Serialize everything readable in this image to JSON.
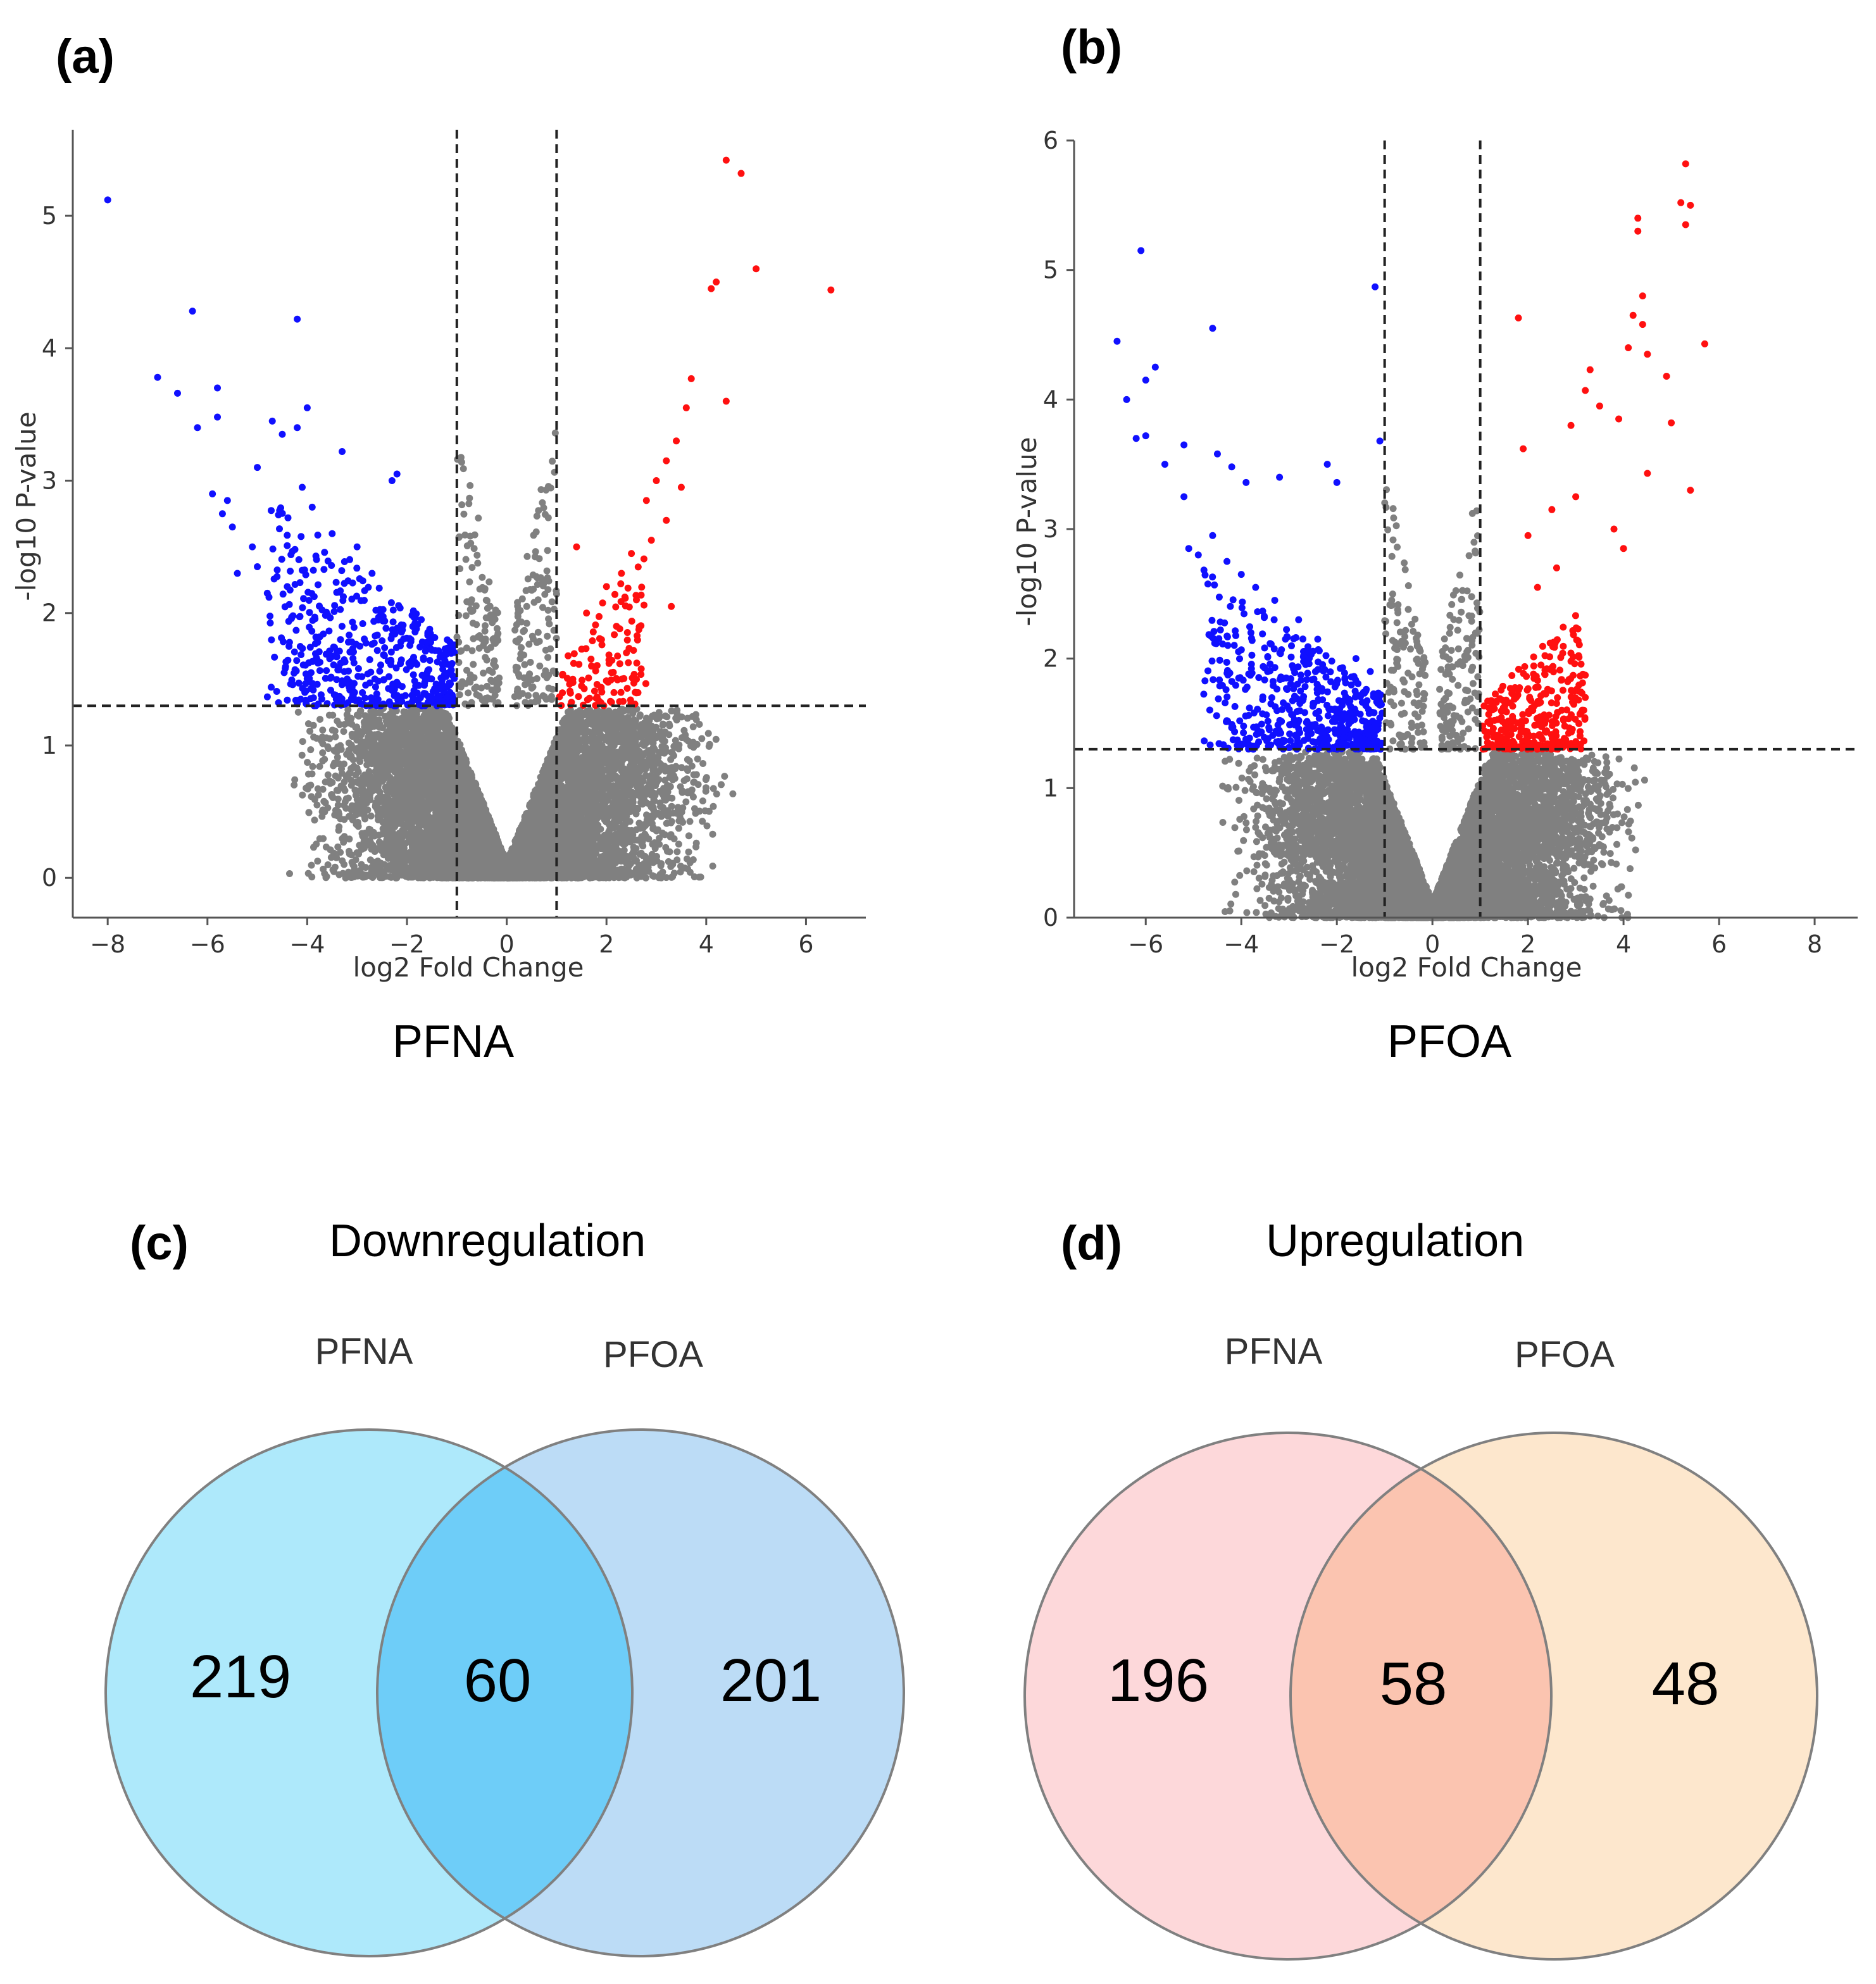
{
  "chart_data": [
    {
      "id": "a",
      "type": "scatter",
      "panel_label": "(a)",
      "title": "PFNA",
      "xlabel": "log2 Fold Change",
      "ylabel": "-log10 P-value",
      "xlim": [
        -8.7,
        7.2
      ],
      "ylim": [
        -0.3,
        5.65
      ],
      "xticks": [
        -8,
        -6,
        -4,
        -2,
        0,
        2,
        4,
        6
      ],
      "yticks": [
        0,
        1,
        2,
        3,
        4,
        5
      ],
      "fc_threshold": [
        -1,
        1
      ],
      "p_threshold": 1.3,
      "colors": {
        "down": "#1010ff",
        "up": "#ff1010",
        "ns": "#808080"
      },
      "points_down": [
        [
          -8.0,
          5.12
        ],
        [
          -6.3,
          4.28
        ],
        [
          -7.0,
          3.78
        ],
        [
          -6.6,
          3.66
        ],
        [
          -5.8,
          3.7
        ],
        [
          -6.2,
          3.4
        ],
        [
          -5.8,
          3.48
        ],
        [
          -5.0,
          3.1
        ],
        [
          -4.7,
          3.45
        ],
        [
          -4.5,
          3.35
        ],
        [
          -4.2,
          4.22
        ],
        [
          -4.0,
          3.55
        ],
        [
          -4.2,
          3.4
        ],
        [
          -3.3,
          3.22
        ],
        [
          -2.2,
          3.05
        ],
        [
          -2.3,
          3.0
        ],
        [
          -5.9,
          2.9
        ],
        [
          -5.6,
          2.85
        ],
        [
          -5.7,
          2.75
        ],
        [
          -5.5,
          2.65
        ],
        [
          -5.1,
          2.5
        ],
        [
          -5.4,
          2.3
        ],
        [
          -5.0,
          2.35
        ],
        [
          -4.8,
          2.15
        ],
        [
          -4.4,
          2.2
        ],
        [
          -4.1,
          2.95
        ],
        [
          -3.9,
          2.8
        ],
        [
          -3.5,
          2.6
        ],
        [
          -3.0,
          2.5
        ],
        [
          -2.7,
          2.3
        ]
      ],
      "points_up": [
        [
          4.4,
          5.42
        ],
        [
          4.7,
          5.32
        ],
        [
          5.0,
          4.6
        ],
        [
          6.5,
          4.44
        ],
        [
          4.2,
          4.5
        ],
        [
          4.1,
          4.45
        ],
        [
          4.4,
          3.6
        ],
        [
          3.7,
          3.77
        ],
        [
          3.6,
          3.55
        ],
        [
          3.4,
          3.3
        ],
        [
          3.2,
          3.15
        ],
        [
          3.0,
          3.0
        ],
        [
          3.5,
          2.95
        ],
        [
          2.8,
          2.85
        ],
        [
          3.2,
          2.7
        ],
        [
          2.9,
          2.55
        ],
        [
          1.4,
          2.5
        ],
        [
          2.5,
          2.45
        ],
        [
          2.3,
          2.3
        ],
        [
          2.0,
          2.2
        ],
        [
          2.6,
          2.1
        ],
        [
          3.3,
          2.05
        ],
        [
          1.6,
          2.0
        ],
        [
          2.2,
          1.9
        ],
        [
          1.9,
          1.8
        ],
        [
          2.4,
          1.7
        ],
        [
          1.7,
          1.6
        ],
        [
          2.1,
          1.55
        ],
        [
          1.5,
          1.45
        ],
        [
          2.6,
          1.5
        ]
      ],
      "down_cloud": {
        "count": 520,
        "x_min": -4.8,
        "x_max": -1.05,
        "y_top": 2.9
      },
      "up_cloud": {
        "count": 110,
        "x_min": 1.05,
        "x_max": 2.8,
        "y_top": 2.5
      }
    },
    {
      "id": "b",
      "type": "scatter",
      "panel_label": "(b)",
      "title": "PFOA",
      "xlabel": "log2 Fold Change",
      "ylabel": "-log10 P-value",
      "xlim": [
        -7.5,
        8.9
      ],
      "ylim": [
        0,
        6
      ],
      "xticks": [
        -6,
        -4,
        -2,
        0,
        2,
        4,
        6,
        8
      ],
      "yticks": [
        0,
        1,
        2,
        3,
        4,
        5,
        6
      ],
      "fc_threshold": [
        -1,
        1
      ],
      "p_threshold": 1.3,
      "colors": {
        "down": "#1010ff",
        "up": "#ff1010",
        "ns": "#808080"
      },
      "points_down": [
        [
          -6.1,
          5.15
        ],
        [
          -6.6,
          4.45
        ],
        [
          -5.8,
          4.25
        ],
        [
          -6.0,
          4.15
        ],
        [
          -6.4,
          4.0
        ],
        [
          -6.2,
          3.7
        ],
        [
          -6.0,
          3.72
        ],
        [
          -5.6,
          3.5
        ],
        [
          -5.2,
          3.65
        ],
        [
          -4.6,
          4.55
        ],
        [
          -4.5,
          3.58
        ],
        [
          -4.2,
          3.48
        ],
        [
          -5.2,
          3.25
        ],
        [
          -3.9,
          3.36
        ],
        [
          -3.2,
          3.4
        ],
        [
          -2.2,
          3.5
        ],
        [
          -2.0,
          3.36
        ],
        [
          -1.2,
          4.87
        ],
        [
          -1.1,
          3.68
        ],
        [
          -5.1,
          2.85
        ],
        [
          -4.9,
          2.8
        ],
        [
          -4.6,
          2.95
        ],
        [
          -4.3,
          2.75
        ],
        [
          -4.0,
          2.65
        ],
        [
          -3.7,
          2.55
        ],
        [
          -3.3,
          2.45
        ],
        [
          -2.8,
          2.3
        ],
        [
          -2.4,
          2.15
        ],
        [
          -1.6,
          2.0
        ],
        [
          -1.3,
          1.9
        ]
      ],
      "points_up": [
        [
          5.3,
          5.82
        ],
        [
          5.2,
          5.52
        ],
        [
          5.4,
          5.5
        ],
        [
          5.3,
          5.35
        ],
        [
          4.3,
          5.4
        ],
        [
          4.3,
          5.3
        ],
        [
          5.7,
          4.43
        ],
        [
          4.2,
          4.65
        ],
        [
          4.4,
          4.8
        ],
        [
          4.4,
          4.58
        ],
        [
          4.5,
          4.35
        ],
        [
          4.1,
          4.4
        ],
        [
          3.3,
          4.23
        ],
        [
          4.9,
          4.18
        ],
        [
          3.2,
          4.07
        ],
        [
          3.5,
          3.95
        ],
        [
          5.0,
          3.82
        ],
        [
          3.9,
          3.85
        ],
        [
          2.9,
          3.8
        ],
        [
          1.8,
          4.63
        ],
        [
          1.9,
          3.62
        ],
        [
          4.5,
          3.43
        ],
        [
          5.4,
          3.3
        ],
        [
          3.0,
          3.25
        ],
        [
          2.5,
          3.15
        ],
        [
          3.8,
          3.0
        ],
        [
          2.0,
          2.95
        ],
        [
          4.0,
          2.85
        ],
        [
          2.6,
          2.7
        ],
        [
          2.2,
          2.55
        ]
      ],
      "down_cloud": {
        "count": 520,
        "x_min": -4.8,
        "x_max": -1.05,
        "y_top": 2.7
      },
      "up_cloud": {
        "count": 330,
        "x_min": 1.05,
        "x_max": 3.2,
        "y_top": 2.45
      }
    },
    {
      "id": "c",
      "type": "venn",
      "panel_label": "(c)",
      "title": "Downregulation",
      "sets": [
        "PFNA",
        "PFOA"
      ],
      "counts": {
        "only_left": "219",
        "both": "60",
        "only_right": "201"
      },
      "colors": {
        "left": "#aee9fb",
        "right": "#bcdcf6",
        "overlap": "#6ecdf8",
        "stroke": "#808080"
      }
    },
    {
      "id": "d",
      "type": "venn",
      "panel_label": "(d)",
      "title": "Upregulation",
      "sets": [
        "PFNA",
        "PFOA"
      ],
      "counts": {
        "only_left": "196",
        "both": "58",
        "only_right": "48"
      },
      "colors": {
        "left": "#fdd8da",
        "right": "#fde7cd",
        "overlap": "#fbc4b0",
        "stroke": "#808080"
      }
    }
  ]
}
